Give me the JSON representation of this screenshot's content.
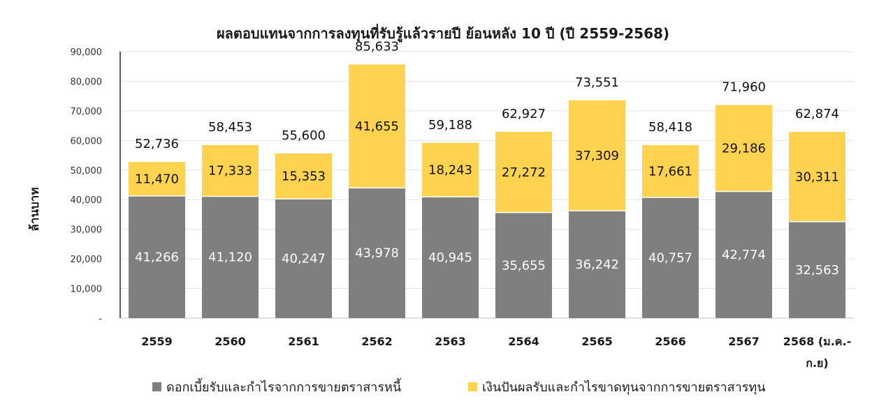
{
  "chart_data": {
    "type": "bar",
    "stacked": true,
    "title": "ผลตอบแทนจากการลงทุนที่รับรู้แล้วรายปี ย้อนหลัง 10 ปี (ปี 2559-2568)",
    "ylabel": "ล้านบาท",
    "xlabel": "",
    "ylim": [
      0,
      90000
    ],
    "y_ticks": [
      {
        "value": 0,
        "label": "-"
      },
      {
        "value": 10000,
        "label": "10,000"
      },
      {
        "value": 20000,
        "label": "20,000"
      },
      {
        "value": 30000,
        "label": "30,000"
      },
      {
        "value": 40000,
        "label": "40,000"
      },
      {
        "value": 50000,
        "label": "50,000"
      },
      {
        "value": 60000,
        "label": "60,000"
      },
      {
        "value": 70000,
        "label": "70,000"
      },
      {
        "value": 80000,
        "label": "80,000"
      },
      {
        "value": 90000,
        "label": "90,000"
      }
    ],
    "categories": [
      [
        "2559"
      ],
      [
        "2560"
      ],
      [
        "2561"
      ],
      [
        "2562"
      ],
      [
        "2563"
      ],
      [
        "2564"
      ],
      [
        "2565"
      ],
      [
        "2566"
      ],
      [
        "2567"
      ],
      [
        "2568 (ม.ค.-",
        "ก.ย)"
      ]
    ],
    "series": [
      {
        "name": "ดอกเบี้ยรับและกำไรจากการขายตราสารหนี้",
        "color": "#7f7f7f",
        "values": [
          41266,
          41120,
          40247,
          43978,
          40945,
          35655,
          36242,
          40757,
          42774,
          32563
        ],
        "labels": [
          "41,266",
          "41,120",
          "40,247",
          "43,978",
          "40,945",
          "35,655",
          "36,242",
          "40,757",
          "42,774",
          "32,563"
        ]
      },
      {
        "name": "เงินปันผลรับและกำไรขาดทุนจากการขายตราสารทุน",
        "color": "#ffd34f",
        "values": [
          11470,
          17333,
          15353,
          41655,
          18243,
          27272,
          37309,
          17661,
          29186,
          30311
        ],
        "labels": [
          "11,470",
          "17,333",
          "15,353",
          "41,655",
          "18,243",
          "27,272",
          "37,309",
          "17,661",
          "29,186",
          "30,311"
        ]
      }
    ],
    "totals": [
      52736,
      58453,
      55600,
      85633,
      59188,
      62927,
      73551,
      58418,
      71960,
      62874
    ],
    "total_labels": [
      "52,736",
      "58,453",
      "55,600",
      "85,633",
      "59,188",
      "62,927",
      "73,551",
      "58,418",
      "71,960",
      "62,874"
    ],
    "grid": true,
    "legend_position": "bottom"
  }
}
